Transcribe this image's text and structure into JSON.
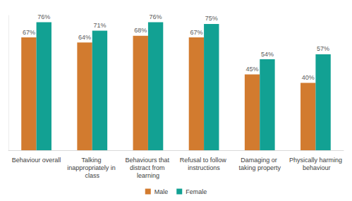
{
  "chart_data": {
    "type": "bar",
    "categories": [
      "Behaviour overall",
      "Talking inappropriately in class",
      "Behaviours that distract from learning",
      "Refusal to follow instructions",
      "Damaging or taking property",
      "Physically harming behaviour"
    ],
    "series": [
      {
        "name": "Male",
        "color": "#d27b2f",
        "values": [
          67,
          64,
          68,
          67,
          45,
          40
        ],
        "value_labels": [
          "67%",
          "64%",
          "68%",
          "67%",
          "45%",
          "40%"
        ]
      },
      {
        "name": "Female",
        "color": "#12a193",
        "values": [
          76,
          71,
          76,
          75,
          54,
          57
        ],
        "value_labels": [
          "76%",
          "71%",
          "76%",
          "75%",
          "54%",
          "57%"
        ]
      }
    ],
    "ylim": [
      0,
      80
    ],
    "grid": false,
    "legend": "bottom",
    "data_labels": true,
    "tick_labels": "x"
  }
}
